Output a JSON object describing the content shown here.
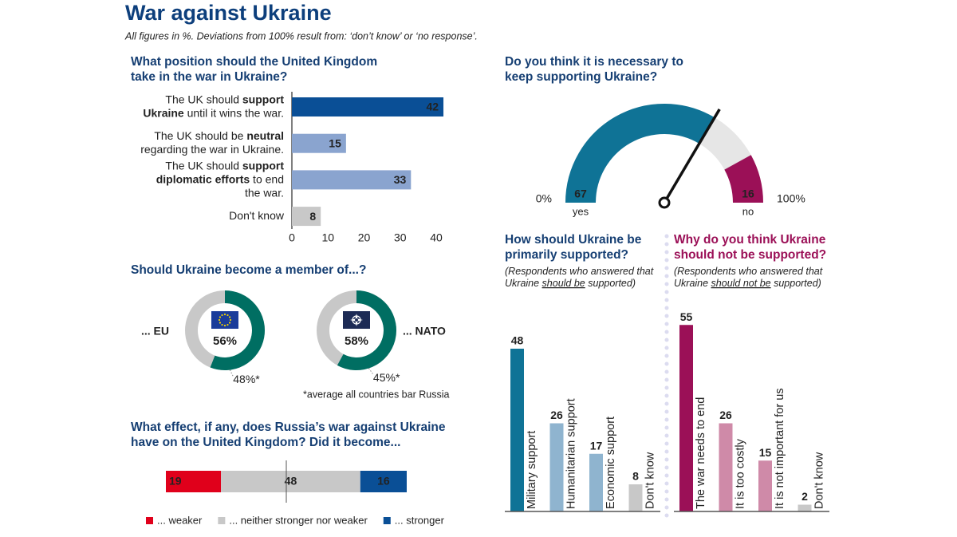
{
  "title": "War against Ukraine",
  "subtitle": "All figures in %. Deviations from 100% result from: ‘don’t know’ or ‘no response’.",
  "chart_data": [
    {
      "type": "hbar",
      "title": [
        "What position should the United Kingdom",
        "take in the war in Ukraine?"
      ],
      "categories": [
        [
          [
            {
              "text": "The UK should "
            },
            {
              "text": "support",
              "bold": true
            }
          ],
          [
            {
              "text": "Ukraine",
              "bold": true
            },
            {
              "text": " until it wins the war."
            }
          ]
        ],
        [
          [
            {
              "text": "The UK should be "
            },
            {
              "text": "neutral",
              "bold": true
            }
          ],
          [
            {
              "text": "regarding the war in Ukraine."
            }
          ]
        ],
        [
          [
            {
              "text": "The UK should "
            },
            {
              "text": "support",
              "bold": true
            }
          ],
          [
            {
              "text": "diplomatic efforts",
              "bold": true
            },
            {
              "text": " to end"
            }
          ],
          [
            {
              "text": "the war."
            }
          ]
        ],
        [
          [
            {
              "text": "Don't know"
            }
          ]
        ]
      ],
      "values": [
        42,
        15,
        33,
        8
      ],
      "colors": [
        "#0a4f96",
        "#8aa4cf",
        "#8aa4cf",
        "#c8c8c8"
      ],
      "xlim": [
        0,
        45
      ],
      "xticks": [
        0,
        10,
        20,
        30,
        40
      ]
    },
    {
      "type": "donut",
      "title": [
        "Should Ukraine become a member of...?"
      ],
      "items": [
        {
          "label": "... EU",
          "value": 56,
          "value_label": "56%",
          "average": 48,
          "average_label": "48%*"
        },
        {
          "label": "... NATO",
          "value": 58,
          "value_label": "58%",
          "average": 45,
          "average_label": "45%*"
        }
      ],
      "color": "#006e62",
      "track_color": "#c8c8c8",
      "footnote": "*average all countries bar Russia"
    },
    {
      "type": "stacked-bar",
      "title": [
        "What effect, if any, does Russia’s war against Ukraine",
        "have on the United Kingdom? Did it become..."
      ],
      "series": [
        {
          "name": "... weaker",
          "color": "#e0001b",
          "values": [
            19
          ]
        },
        {
          "name": "... neither stronger nor weaker",
          "color": "#c8c8c8",
          "values": [
            48
          ]
        },
        {
          "name": "... stronger",
          "color": "#0a4f96",
          "values": [
            16
          ]
        }
      ],
      "xlim": [
        0,
        83
      ]
    },
    {
      "type": "gauge",
      "title": [
        "Do you think it is necessary to",
        "keep supporting Ukraine?"
      ],
      "series": [
        {
          "name": "yes",
          "color": "#0f7396",
          "values": [
            67
          ]
        },
        {
          "name": "no",
          "color": "#9b1057",
          "values": [
            16
          ]
        }
      ],
      "track_color": "#e6e6e6",
      "ylim": [
        0,
        100
      ],
      "yticks": [
        {
          "value": 0,
          "label": "0%"
        },
        {
          "value": 100,
          "label": "100%"
        }
      ]
    },
    {
      "type": "vbar",
      "title": [
        "How should Ukraine be",
        "primarily supported?"
      ],
      "title_color": "#163f73",
      "subtitle": [
        [
          {
            "text": "(Respondents who answered that"
          }
        ],
        [
          {
            "text": "Ukraine "
          },
          {
            "text": "should be",
            "underline": true
          },
          {
            "text": " supported)"
          }
        ]
      ],
      "categories": [
        "Military support",
        "Humanitarian support",
        "Economic support",
        "Don't know"
      ],
      "values": [
        48,
        26,
        17,
        8
      ],
      "colors": [
        "#0f7396",
        "#8fb4cf",
        "#8fb4cf",
        "#c8c8c8"
      ],
      "ylim": [
        0,
        55
      ]
    },
    {
      "type": "vbar",
      "title": [
        "Why do you think Ukraine",
        "should not be supported?"
      ],
      "title_color": "#9b1057",
      "subtitle": [
        [
          {
            "text": "(Respondents who answered that"
          }
        ],
        [
          {
            "text": "Ukraine "
          },
          {
            "text": "should not be",
            "underline": true
          },
          {
            "text": " supported)"
          }
        ]
      ],
      "categories": [
        "The war needs to end",
        "It is too costly",
        "It is not important for us",
        "Don't know"
      ],
      "values": [
        55,
        26,
        15,
        2
      ],
      "colors": [
        "#9b1057",
        "#cf8aa8",
        "#cf8aa8",
        "#c8c8c8"
      ],
      "ylim": [
        0,
        55
      ]
    }
  ]
}
